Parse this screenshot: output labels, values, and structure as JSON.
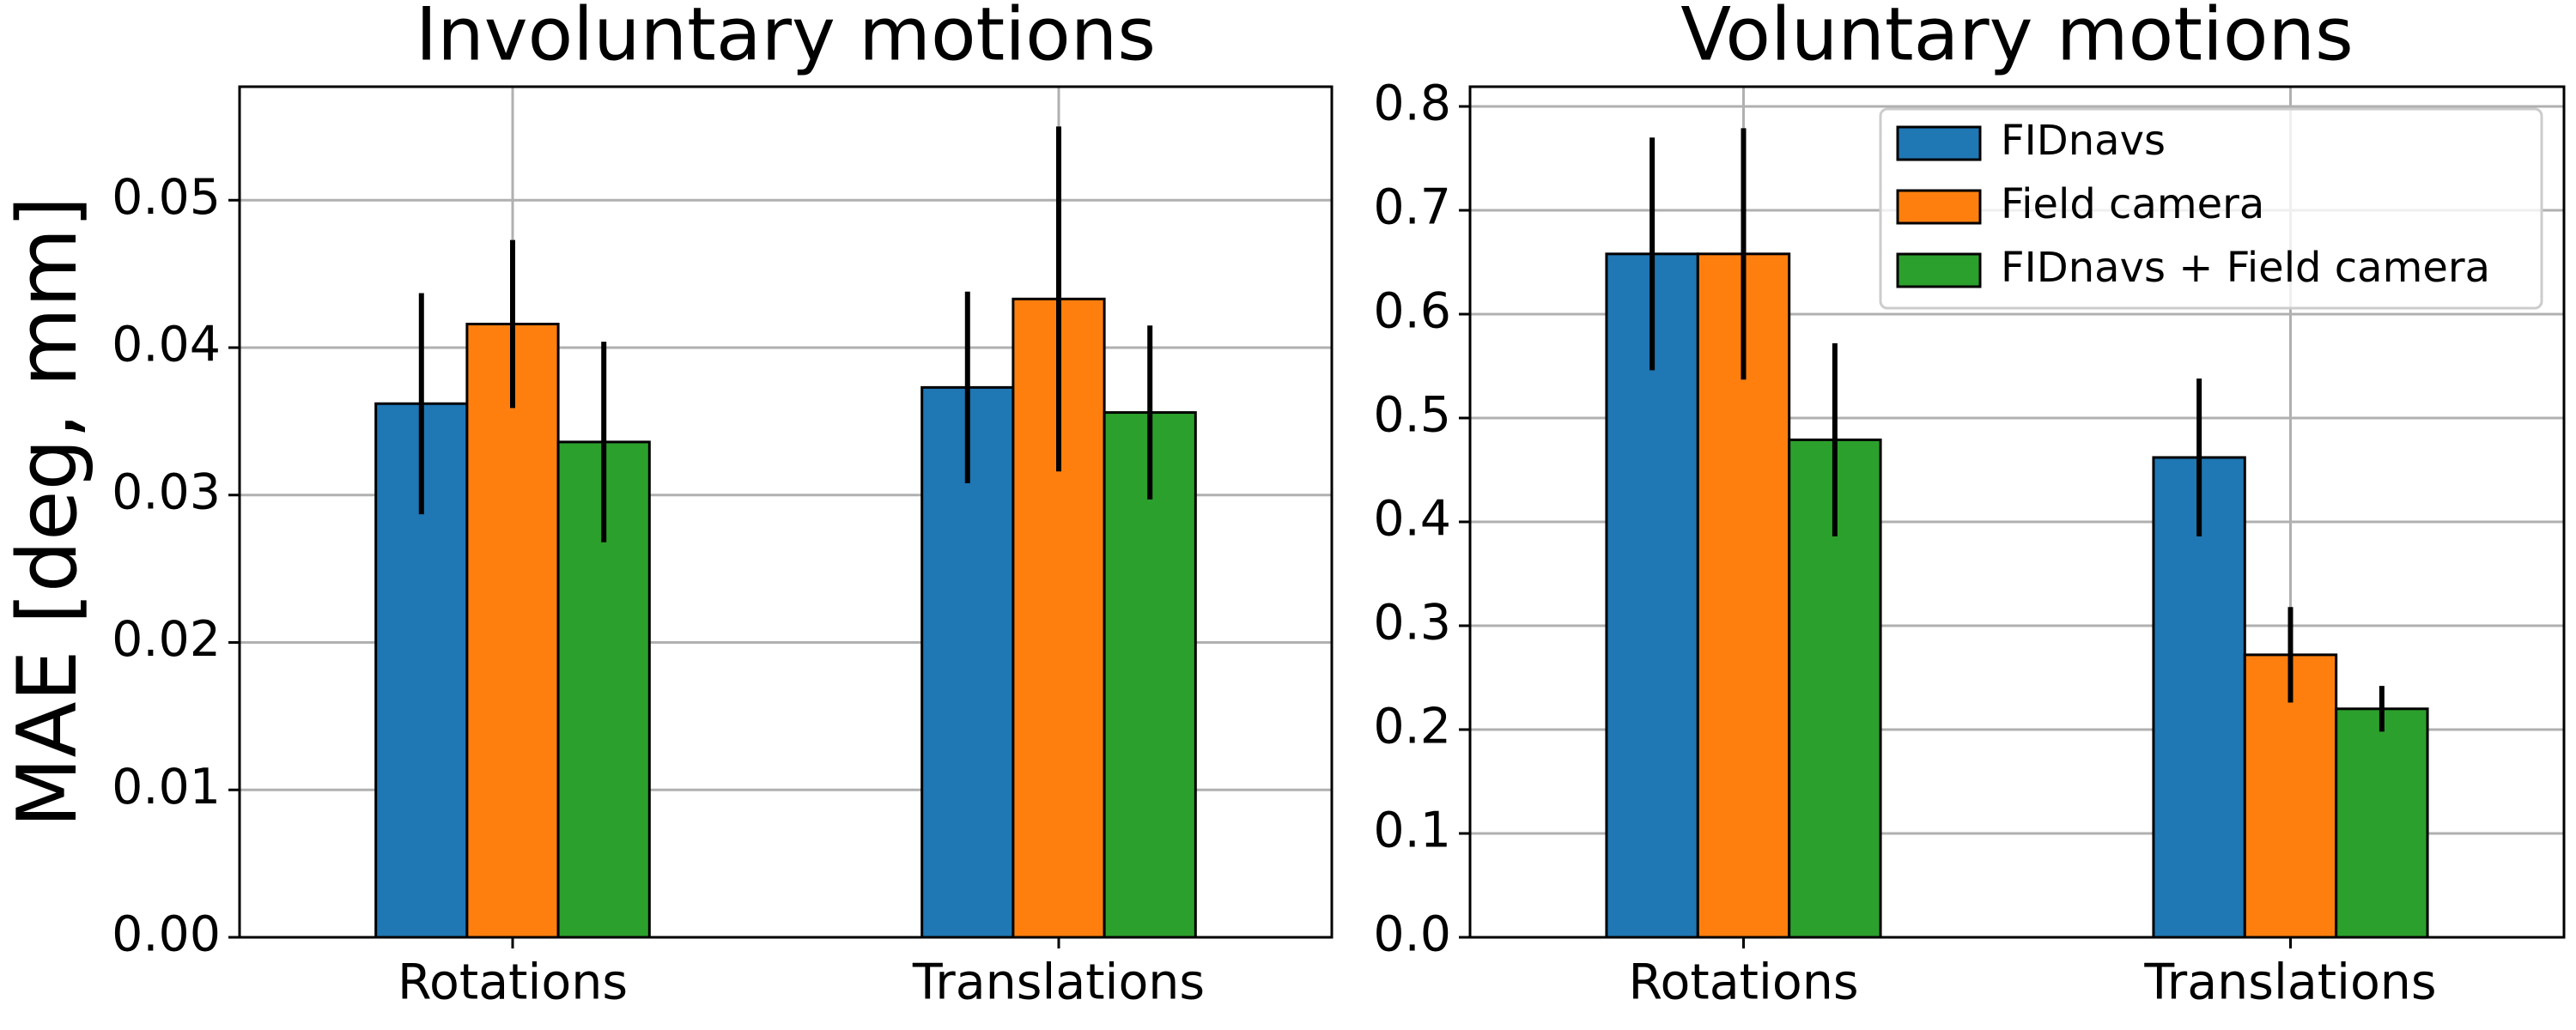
{
  "chart_data": [
    {
      "type": "bar",
      "title": "Involuntary motions",
      "ylabel": "MAE [deg, mm]",
      "categories": [
        "Rotations",
        "Translations"
      ],
      "series": [
        {
          "name": "FIDnavs",
          "color": "#1f77b4",
          "values": [
            0.0362,
            0.0373
          ],
          "errors": [
            0.0075,
            0.0065
          ]
        },
        {
          "name": "Field camera",
          "color": "#ff7f0e",
          "values": [
            0.0416,
            0.0433
          ],
          "errors": [
            0.0057,
            0.0117
          ]
        },
        {
          "name": "FIDnavs + Field camera",
          "color": "#2ca02c",
          "values": [
            0.0336,
            0.0356
          ],
          "errors": [
            0.0068,
            0.0059
          ]
        }
      ],
      "ylim": [
        0,
        0.0577
      ],
      "yticks": [
        {
          "value": 0,
          "label": "0.00"
        },
        0.01,
        0.02,
        0.03,
        0.04,
        0.05
      ],
      "grid": true
    },
    {
      "type": "bar",
      "title": "Voluntary motions",
      "categories": [
        "Rotations",
        "Translations"
      ],
      "series": [
        {
          "name": "FIDnavs",
          "color": "#1f77b4",
          "values": [
            0.658,
            0.462
          ],
          "errors": [
            0.112,
            0.076
          ]
        },
        {
          "name": "Field camera",
          "color": "#ff7f0e",
          "values": [
            0.658,
            0.272
          ],
          "errors": [
            0.121,
            0.046
          ]
        },
        {
          "name": "FIDnavs + Field camera",
          "color": "#2ca02c",
          "values": [
            0.479,
            0.22
          ],
          "errors": [
            0.093,
            0.022
          ]
        }
      ],
      "ylim": [
        0,
        0.819
      ],
      "yticks": [
        {
          "value": 0,
          "label": "0.0"
        },
        0.1,
        0.2,
        0.3,
        0.4,
        0.5,
        0.6,
        0.7,
        0.8
      ],
      "grid": true,
      "legend": "upper right"
    }
  ]
}
